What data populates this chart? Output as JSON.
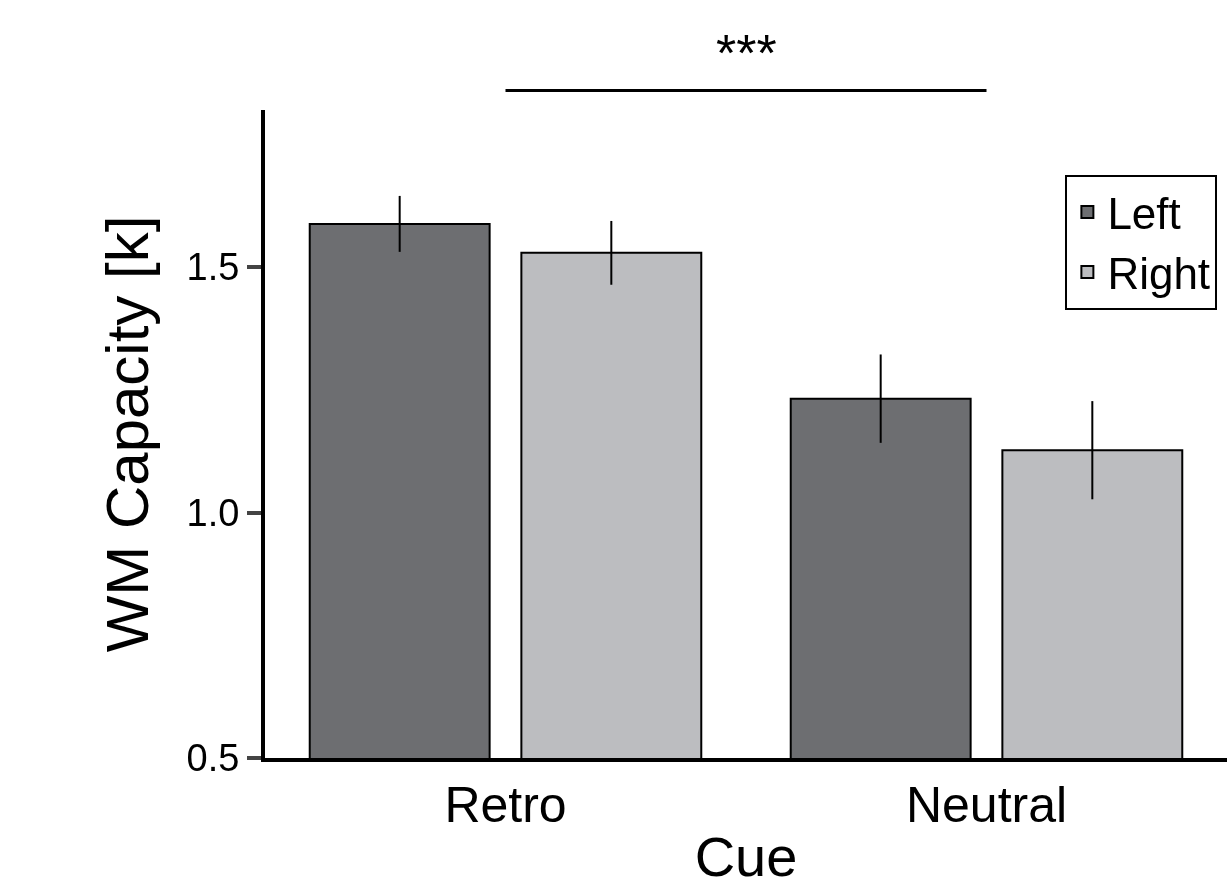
{
  "chart_data": {
    "type": "bar",
    "xlabel": "Cue",
    "ylabel": "WM Capacity [k]",
    "categories": [
      "Retro",
      "Neutral"
    ],
    "series": [
      {
        "name": "Left",
        "color": "#6d6e71",
        "values": [
          1.588,
          1.232
        ],
        "errors": [
          0.057,
          0.09
        ]
      },
      {
        "name": "Right",
        "color": "#bcbdc0",
        "values": [
          1.529,
          1.127
        ],
        "errors": [
          0.065,
          0.1
        ]
      }
    ],
    "ylim": [
      0.5,
      1.82
    ],
    "yticks": [
      {
        "value": 0.5,
        "label": "0.5"
      },
      {
        "value": 1,
        "label": "1.0"
      },
      {
        "value": 1.5,
        "label": "1.5"
      }
    ],
    "grid": false,
    "legend": "top right",
    "annotations": [
      "***"
    ]
  }
}
